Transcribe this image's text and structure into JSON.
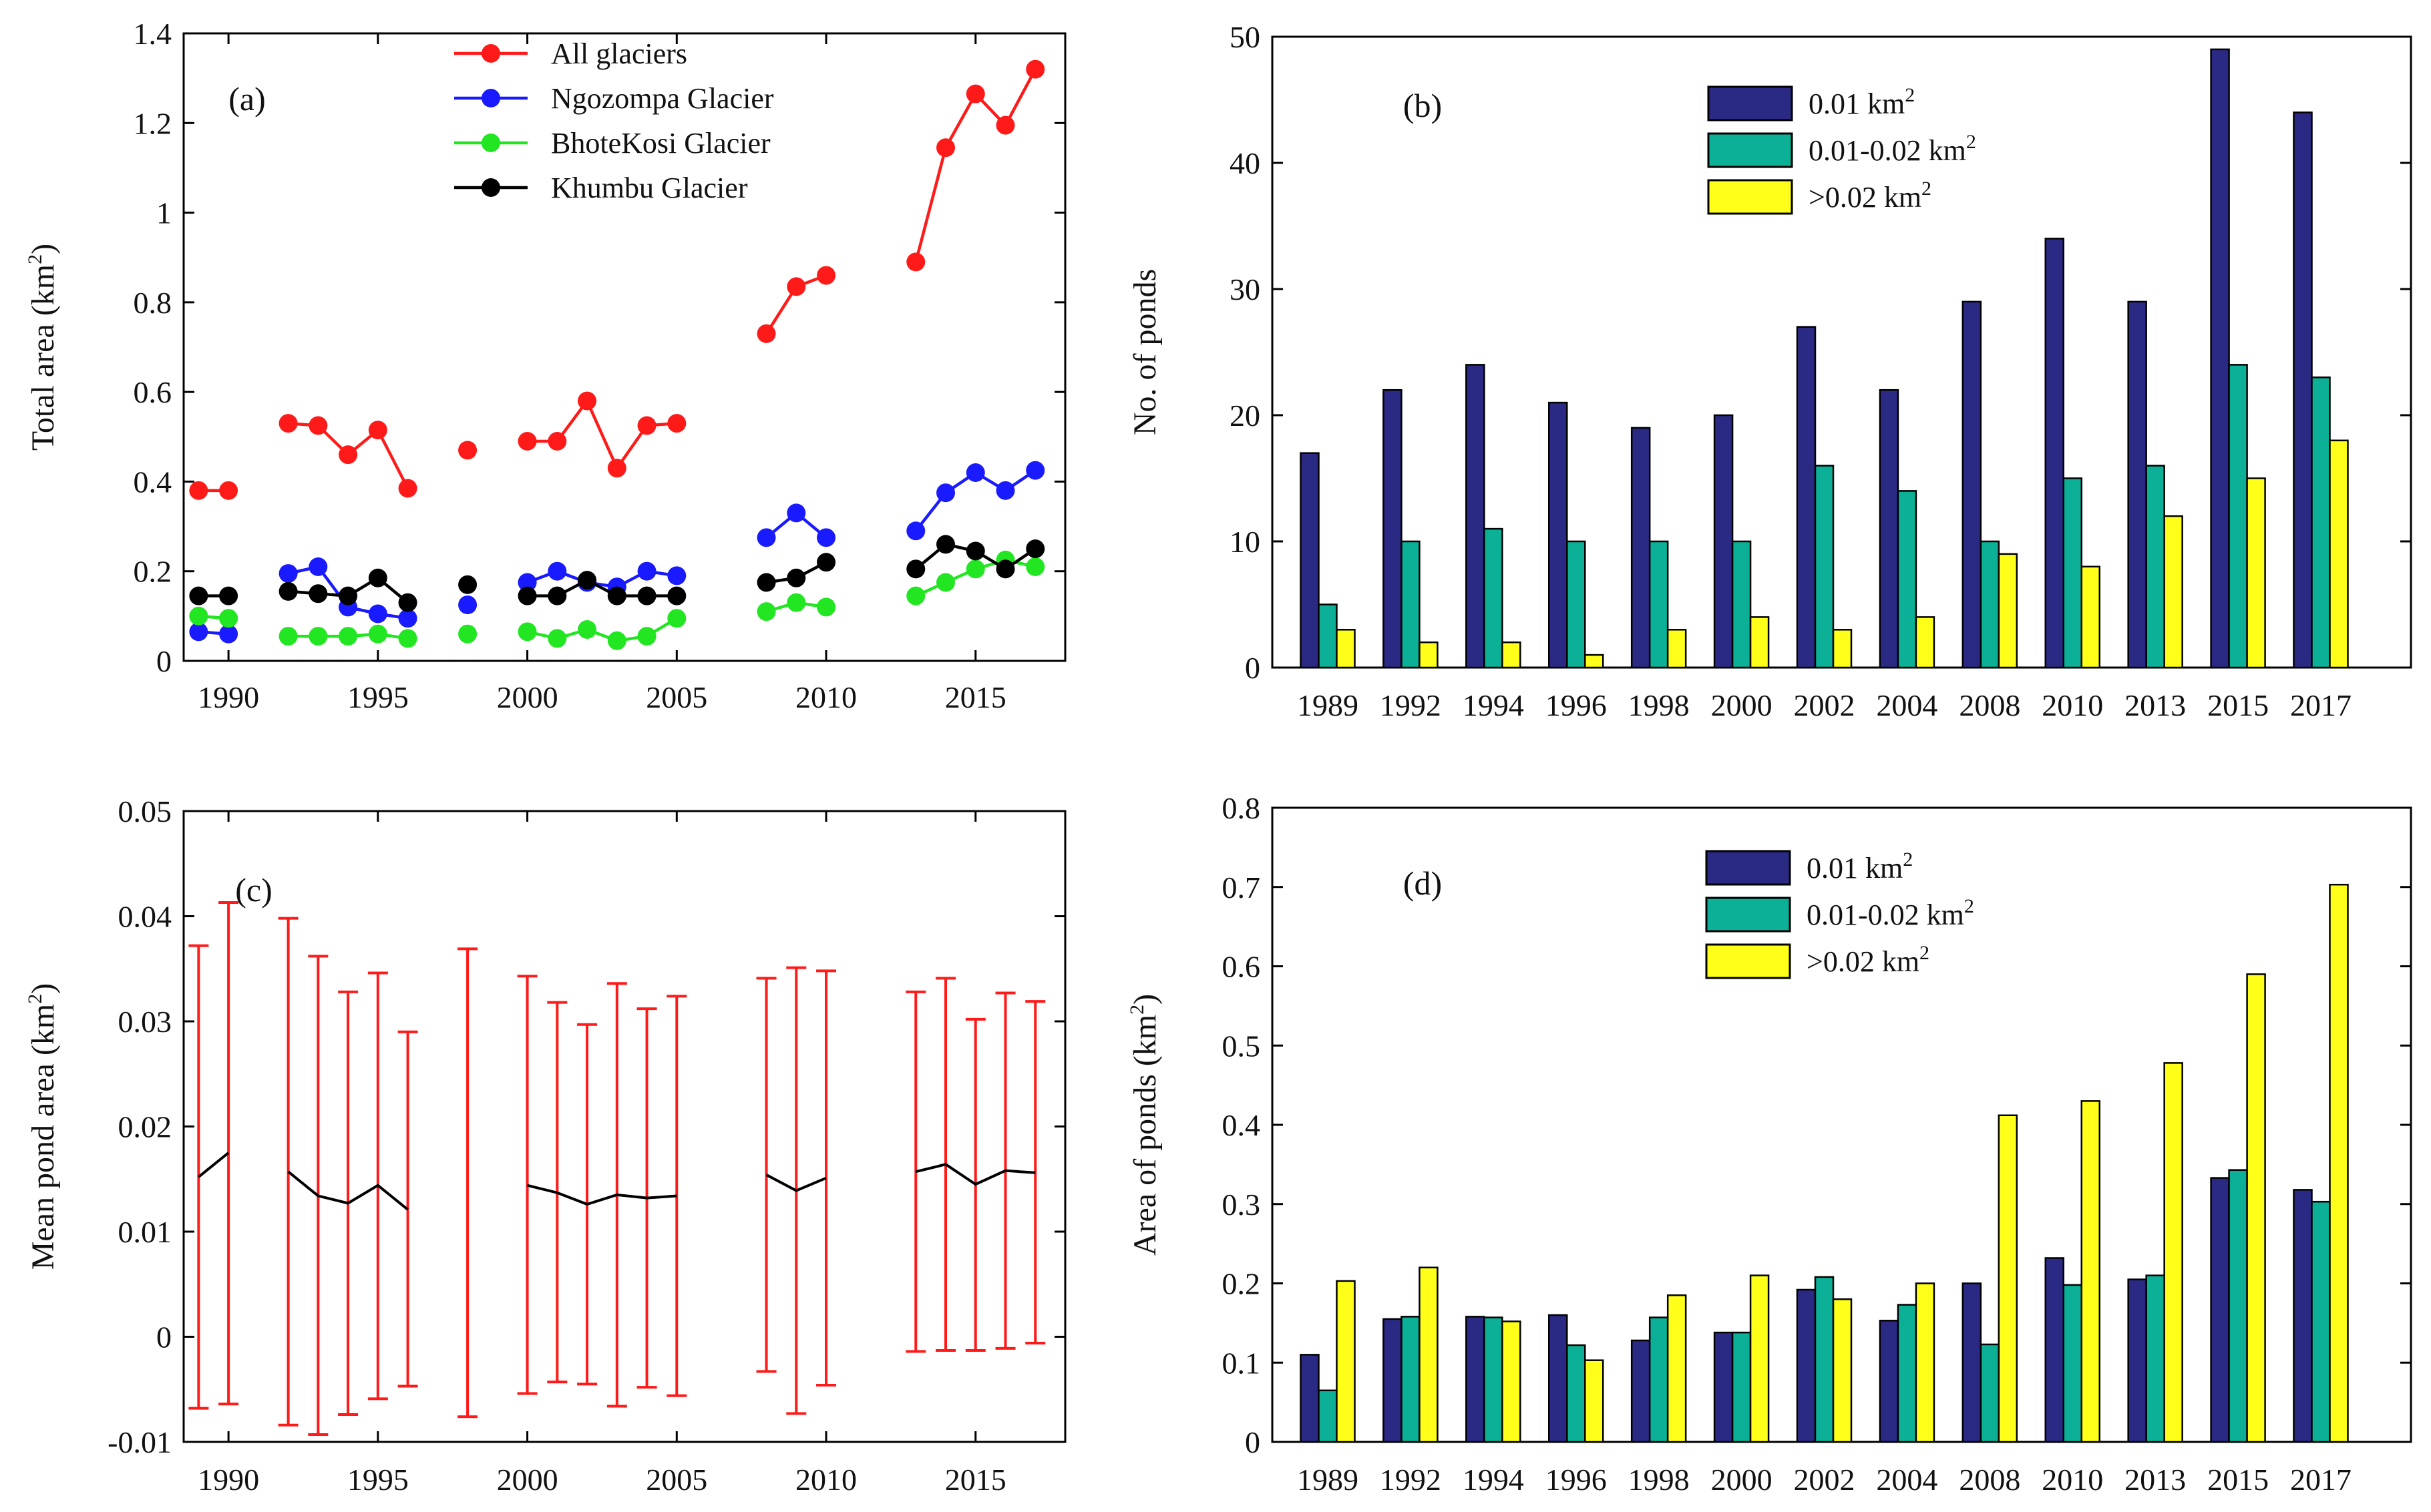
{
  "chart_data": [
    {
      "id": "a",
      "panel_label": "(a)",
      "type": "line",
      "ylabel": "Total area (km",
      "ylabel_sup": "2",
      "ylabel_end": ")",
      "xlim": [
        1988.5,
        2018
      ],
      "ylim": [
        0,
        1.4
      ],
      "xticks": [
        1990,
        1995,
        2000,
        2005,
        2010,
        2015
      ],
      "xtick_labels": [
        "1990",
        "1995",
        "2000",
        "2005",
        "2010",
        "2015"
      ],
      "yticks": [
        0,
        0.2,
        0.4,
        0.6,
        0.8,
        1.0,
        1.2,
        1.4
      ],
      "ytick_labels": [
        "0",
        "0.2",
        "0.4",
        "0.6",
        "0.8",
        "1",
        "1.2",
        "1.4"
      ],
      "legend_position": "top-center",
      "series": [
        {
          "name": "All glaciers",
          "color": "#ff1a1a",
          "segments": [
            [
              [
                1989,
                0.38
              ],
              [
                1990,
                0.38
              ]
            ],
            [
              [
                1992,
                0.53
              ],
              [
                1993,
                0.525
              ],
              [
                1994,
                0.46
              ],
              [
                1995,
                0.515
              ],
              [
                1996,
                0.385
              ]
            ],
            [
              [
                1998,
                0.47
              ]
            ],
            [
              [
                2000,
                0.49
              ],
              [
                2001,
                0.49
              ],
              [
                2002,
                0.58
              ],
              [
                2003,
                0.43
              ],
              [
                2004,
                0.525
              ],
              [
                2005,
                0.53
              ]
            ],
            [
              [
                2008,
                0.73
              ],
              [
                2009,
                0.835
              ],
              [
                2010,
                0.86
              ]
            ],
            [
              [
                2013,
                0.89
              ],
              [
                2014,
                1.145
              ],
              [
                2015,
                1.265
              ],
              [
                2016,
                1.195
              ],
              [
                2017,
                1.32
              ]
            ]
          ]
        },
        {
          "name": "Ngozompa Glacier",
          "color": "#1a1aff",
          "segments": [
            [
              [
                1989,
                0.065
              ],
              [
                1990,
                0.06
              ]
            ],
            [
              [
                1992,
                0.195
              ],
              [
                1993,
                0.21
              ],
              [
                1994,
                0.12
              ],
              [
                1995,
                0.105
              ],
              [
                1996,
                0.095
              ]
            ],
            [
              [
                1998,
                0.125
              ]
            ],
            [
              [
                2000,
                0.175
              ],
              [
                2001,
                0.2
              ],
              [
                2002,
                0.175
              ],
              [
                2003,
                0.165
              ],
              [
                2004,
                0.2
              ],
              [
                2005,
                0.19
              ]
            ],
            [
              [
                2008,
                0.275
              ],
              [
                2009,
                0.33
              ],
              [
                2010,
                0.275
              ]
            ],
            [
              [
                2013,
                0.29
              ],
              [
                2014,
                0.375
              ],
              [
                2015,
                0.42
              ],
              [
                2016,
                0.38
              ],
              [
                2017,
                0.425
              ]
            ]
          ]
        },
        {
          "name": "BhoteKosi Glacier",
          "color": "#22e622",
          "segments": [
            [
              [
                1989,
                0.1
              ],
              [
                1990,
                0.095
              ]
            ],
            [
              [
                1992,
                0.055
              ],
              [
                1993,
                0.055
              ],
              [
                1994,
                0.055
              ],
              [
                1995,
                0.06
              ],
              [
                1996,
                0.05
              ]
            ],
            [
              [
                1998,
                0.06
              ]
            ],
            [
              [
                2000,
                0.065
              ],
              [
                2001,
                0.05
              ],
              [
                2002,
                0.07
              ],
              [
                2003,
                0.045
              ],
              [
                2004,
                0.055
              ],
              [
                2005,
                0.095
              ]
            ],
            [
              [
                2008,
                0.11
              ],
              [
                2009,
                0.13
              ],
              [
                2010,
                0.12
              ]
            ],
            [
              [
                2013,
                0.145
              ],
              [
                2014,
                0.175
              ],
              [
                2015,
                0.205
              ],
              [
                2016,
                0.225
              ],
              [
                2017,
                0.21
              ]
            ]
          ]
        },
        {
          "name": "Khumbu Glacier",
          "color": "#000000",
          "segments": [
            [
              [
                1989,
                0.145
              ],
              [
                1990,
                0.145
              ]
            ],
            [
              [
                1992,
                0.155
              ],
              [
                1993,
                0.15
              ],
              [
                1994,
                0.145
              ],
              [
                1995,
                0.185
              ],
              [
                1996,
                0.13
              ]
            ],
            [
              [
                1998,
                0.17
              ]
            ],
            [
              [
                2000,
                0.145
              ],
              [
                2001,
                0.145
              ],
              [
                2002,
                0.18
              ],
              [
                2003,
                0.145
              ],
              [
                2004,
                0.145
              ],
              [
                2005,
                0.145
              ]
            ],
            [
              [
                2008,
                0.175
              ],
              [
                2009,
                0.185
              ],
              [
                2010,
                0.22
              ]
            ],
            [
              [
                2013,
                0.205
              ],
              [
                2014,
                0.26
              ],
              [
                2015,
                0.245
              ],
              [
                2016,
                0.205
              ],
              [
                2017,
                0.25
              ]
            ]
          ]
        }
      ]
    },
    {
      "id": "b",
      "panel_label": "(b)",
      "type": "bar",
      "ylabel": "No. of ponds",
      "categories": [
        "1989",
        "1992",
        "1994",
        "1996",
        "1998",
        "2000",
        "2002",
        "2004",
        "2008",
        "2010",
        "2013",
        "2015",
        "2017"
      ],
      "ylim": [
        0,
        50
      ],
      "yticks": [
        0,
        10,
        20,
        30,
        40,
        50
      ],
      "ytick_labels": [
        "0",
        "10",
        "20",
        "30",
        "40",
        "50"
      ],
      "legend_position": "top-center",
      "series": [
        {
          "name": "0.01 km",
          "sup": "2",
          "color": "#2a2a85",
          "values": [
            17,
            22,
            24,
            21,
            19,
            20,
            27,
            22,
            29,
            34,
            29,
            49,
            44
          ]
        },
        {
          "name": "0.01-0.02 km",
          "sup": "2",
          "color": "#0bb096",
          "values": [
            5,
            10,
            11,
            10,
            10,
            10,
            16,
            14,
            10,
            15,
            16,
            24,
            23
          ]
        },
        {
          "name": ">0.02 km",
          "sup": "2",
          "color": "#ffff1a",
          "values": [
            3,
            2,
            2,
            1,
            3,
            4,
            3,
            4,
            9,
            8,
            12,
            15,
            18
          ]
        }
      ]
    },
    {
      "id": "c",
      "panel_label": "(c)",
      "type": "line",
      "ylabel": "Mean pond area (km",
      "ylabel_sup": "2",
      "ylabel_end": ")",
      "xlim": [
        1988.5,
        2018
      ],
      "ylim": [
        -0.01,
        0.05
      ],
      "xticks": [
        1990,
        1995,
        2000,
        2005,
        2010,
        2015
      ],
      "xtick_labels": [
        "1990",
        "1995",
        "2000",
        "2005",
        "2010",
        "2015"
      ],
      "yticks": [
        -0.01,
        0,
        0.01,
        0.02,
        0.03,
        0.04,
        0.05
      ],
      "ytick_labels": [
        "-0.01",
        "0",
        "0.01",
        "0.02",
        "0.03",
        "0.04",
        "0.05"
      ],
      "mean_color": "#000000",
      "error_color": "#ff1a1a",
      "segments": [
        [
          [
            1989,
            0.0152,
            -0.0068,
            0.0372
          ],
          [
            1990,
            0.0175,
            -0.0064,
            0.0413
          ]
        ],
        [
          [
            1992,
            0.0157,
            -0.0084,
            0.0398
          ],
          [
            1993,
            0.0134,
            -0.0093,
            0.0362
          ],
          [
            1994,
            0.0127,
            -0.0074,
            0.0328
          ],
          [
            1995,
            0.0144,
            -0.0059,
            0.0346
          ],
          [
            1996,
            0.0121,
            -0.0047,
            0.029
          ]
        ],
        [
          [
            1998,
            0.0148,
            -0.0076,
            0.0369
          ]
        ],
        [
          [
            2000,
            0.0144,
            -0.0054,
            0.0343
          ],
          [
            2001,
            0.0137,
            -0.0043,
            0.0318
          ],
          [
            2002,
            0.0126,
            -0.0045,
            0.0297
          ],
          [
            2003,
            0.0135,
            -0.0066,
            0.0336
          ],
          [
            2004,
            0.0132,
            -0.0048,
            0.0312
          ],
          [
            2005,
            0.0134,
            -0.0056,
            0.0324
          ]
        ],
        [
          [
            2008,
            0.0154,
            -0.0033,
            0.0341
          ],
          [
            2009,
            0.0139,
            -0.0073,
            0.0351
          ],
          [
            2010,
            0.0151,
            -0.0046,
            0.0348
          ]
        ],
        [
          [
            2013,
            0.0157,
            -0.0014,
            0.0328
          ],
          [
            2014,
            0.0164,
            -0.0013,
            0.0341
          ],
          [
            2015,
            0.0145,
            -0.0013,
            0.0302
          ],
          [
            2016,
            0.0158,
            -0.0011,
            0.0327
          ],
          [
            2017,
            0.0156,
            -0.0006,
            0.0319
          ]
        ]
      ]
    },
    {
      "id": "d",
      "panel_label": "(d)",
      "type": "bar",
      "ylabel": "Area of ponds (km",
      "ylabel_sup": "2",
      "ylabel_end": ")",
      "categories": [
        "1989",
        "1992",
        "1994",
        "1996",
        "1998",
        "2000",
        "2002",
        "2004",
        "2008",
        "2010",
        "2013",
        "2015",
        "2017"
      ],
      "ylim": [
        0,
        0.8
      ],
      "yticks": [
        0,
        0.1,
        0.2,
        0.3,
        0.4,
        0.5,
        0.6,
        0.7,
        0.8
      ],
      "ytick_labels": [
        "0",
        "0.1",
        "0.2",
        "0.3",
        "0.4",
        "0.5",
        "0.6",
        "0.7",
        "0.8"
      ],
      "legend_position": "top-center",
      "series": [
        {
          "name": "0.01 km",
          "sup": "2",
          "color": "#2a2a85",
          "values": [
            0.11,
            0.155,
            0.158,
            0.16,
            0.128,
            0.138,
            0.192,
            0.153,
            0.2,
            0.232,
            0.205,
            0.333,
            0.318
          ]
        },
        {
          "name": "0.01-0.02 km",
          "sup": "2",
          "color": "#0bb096",
          "values": [
            0.065,
            0.158,
            0.157,
            0.122,
            0.157,
            0.138,
            0.208,
            0.173,
            0.123,
            0.198,
            0.21,
            0.343,
            0.303
          ]
        },
        {
          "name": ">0.02 km",
          "sup": "2",
          "color": "#ffff1a",
          "values": [
            0.203,
            0.22,
            0.152,
            0.103,
            0.185,
            0.21,
            0.18,
            0.2,
            0.412,
            0.43,
            0.478,
            0.59,
            0.703
          ]
        }
      ]
    }
  ]
}
